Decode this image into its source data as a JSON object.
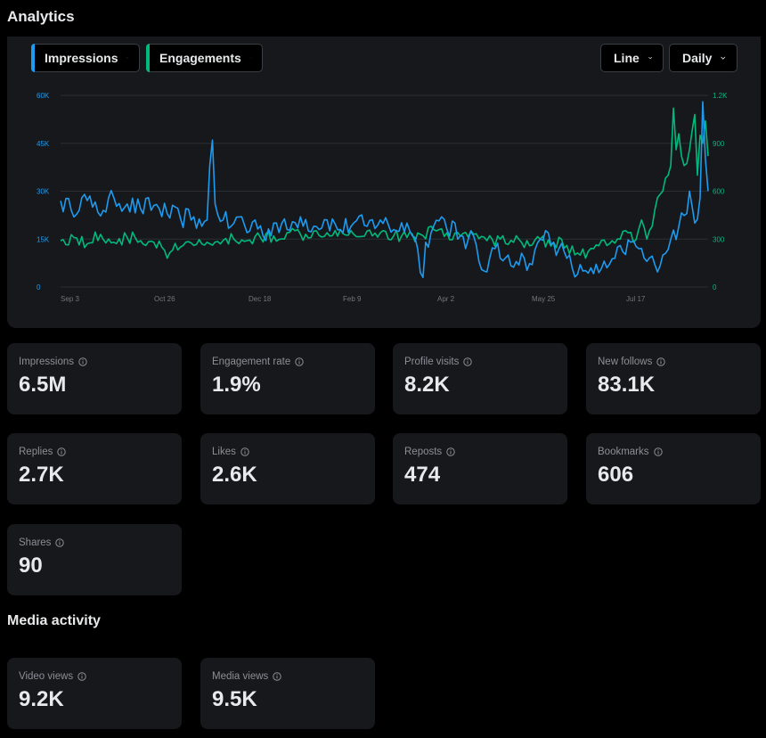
{
  "header": {
    "title": "Analytics"
  },
  "chart_controls": {
    "metric_1": {
      "label": "Impressions",
      "color": "#1d9bf0"
    },
    "metric_2": {
      "label": "Engagements",
      "color": "#00ba7c"
    },
    "chart_type": "Line",
    "interval": "Daily"
  },
  "chart_data": {
    "type": "line",
    "x_tick_labels": [
      "Sep 3",
      "Oct 26",
      "Dec 18",
      "Feb 9",
      "Apr 2",
      "May 25",
      "Jul 17"
    ],
    "y_left_ticks": [
      "60K",
      "45K",
      "30K",
      "15K",
      "0"
    ],
    "y_right_ticks": [
      "1.2K",
      "900",
      "600",
      "300",
      "0"
    ],
    "y_left_range": [
      0,
      60000
    ],
    "y_right_range": [
      0,
      1200
    ],
    "grid": true,
    "series": [
      {
        "name": "Impressions",
        "axis": "left",
        "color": "#1d9bf0",
        "anchors": [
          [
            0,
            27000
          ],
          [
            4,
            24000
          ],
          [
            8,
            28000
          ],
          [
            12,
            25000
          ],
          [
            16,
            24000
          ],
          [
            20,
            28000
          ],
          [
            25,
            26000
          ],
          [
            30,
            24500
          ],
          [
            35,
            25500
          ],
          [
            40,
            23000
          ],
          [
            45,
            21500
          ],
          [
            50,
            22000
          ],
          [
            53,
            19000
          ],
          [
            55,
            21000
          ],
          [
            56,
            38000
          ],
          [
            57,
            46000
          ],
          [
            58,
            26000
          ],
          [
            61,
            21000
          ],
          [
            64,
            19000
          ],
          [
            68,
            22000
          ],
          [
            70,
            17000
          ],
          [
            73,
            21000
          ],
          [
            76,
            16000
          ],
          [
            80,
            20000
          ],
          [
            85,
            18000
          ],
          [
            90,
            22000
          ],
          [
            95,
            19000
          ],
          [
            100,
            21000
          ],
          [
            105,
            18000
          ],
          [
            110,
            20000
          ],
          [
            115,
            19000
          ],
          [
            120,
            21000
          ],
          [
            125,
            18000
          ],
          [
            130,
            20000
          ],
          [
            132,
            16000
          ],
          [
            134,
            12000
          ],
          [
            136,
            3000
          ],
          [
            137,
            14000
          ],
          [
            140,
            19000
          ],
          [
            143,
            22000
          ],
          [
            145,
            18000
          ],
          [
            148,
            20000
          ],
          [
            150,
            16000
          ],
          [
            152,
            12000
          ],
          [
            155,
            16000
          ],
          [
            157,
            8000
          ],
          [
            159,
            5000
          ],
          [
            161,
            9000
          ],
          [
            163,
            12000
          ],
          [
            165,
            9000
          ],
          [
            168,
            10000
          ],
          [
            171,
            8000
          ],
          [
            174,
            9000
          ],
          [
            177,
            7000
          ],
          [
            180,
            15000
          ],
          [
            183,
            17000
          ],
          [
            185,
            14000
          ],
          [
            187,
            12000
          ],
          [
            190,
            9000
          ],
          [
            192,
            6000
          ],
          [
            194,
            4000
          ],
          [
            196,
            5000
          ],
          [
            199,
            6000
          ],
          [
            202,
            4500
          ],
          [
            205,
            6000
          ],
          [
            208,
            9000
          ],
          [
            211,
            11000
          ],
          [
            214,
            14000
          ],
          [
            217,
            12000
          ],
          [
            220,
            8000
          ],
          [
            223,
            7000
          ],
          [
            226,
            10000
          ],
          [
            229,
            15000
          ],
          [
            232,
            19000
          ],
          [
            235,
            23000
          ],
          [
            236,
            30000
          ],
          [
            238,
            20000
          ],
          [
            240,
            28000
          ],
          [
            241,
            58000
          ],
          [
            242,
            40000
          ],
          [
            243,
            30000
          ]
        ]
      },
      {
        "name": "Engagements",
        "axis": "right",
        "color": "#00ba7c",
        "anchors": [
          [
            0,
            290
          ],
          [
            5,
            310
          ],
          [
            10,
            270
          ],
          [
            15,
            330
          ],
          [
            20,
            280
          ],
          [
            25,
            310
          ],
          [
            30,
            290
          ],
          [
            35,
            280
          ],
          [
            38,
            250
          ],
          [
            40,
            180
          ],
          [
            42,
            230
          ],
          [
            45,
            250
          ],
          [
            50,
            260
          ],
          [
            55,
            280
          ],
          [
            60,
            270
          ],
          [
            65,
            300
          ],
          [
            70,
            290
          ],
          [
            75,
            310
          ],
          [
            80,
            320
          ],
          [
            85,
            340
          ],
          [
            90,
            330
          ],
          [
            95,
            350
          ],
          [
            100,
            340
          ],
          [
            105,
            360
          ],
          [
            110,
            330
          ],
          [
            115,
            350
          ],
          [
            120,
            340
          ],
          [
            125,
            320
          ],
          [
            130,
            310
          ],
          [
            135,
            330
          ],
          [
            140,
            360
          ],
          [
            145,
            340
          ],
          [
            150,
            320
          ],
          [
            155,
            330
          ],
          [
            160,
            290
          ],
          [
            165,
            300
          ],
          [
            170,
            280
          ],
          [
            175,
            290
          ],
          [
            180,
            300
          ],
          [
            185,
            280
          ],
          [
            190,
            260
          ],
          [
            195,
            200
          ],
          [
            200,
            240
          ],
          [
            205,
            260
          ],
          [
            210,
            300
          ],
          [
            213,
            340
          ],
          [
            215,
            280
          ],
          [
            218,
            420
          ],
          [
            220,
            300
          ],
          [
            222,
            380
          ],
          [
            224,
            560
          ],
          [
            226,
            600
          ],
          [
            228,
            700
          ],
          [
            229,
            760
          ],
          [
            230,
            1120
          ],
          [
            231,
            860
          ],
          [
            232,
            960
          ],
          [
            233,
            820
          ],
          [
            234,
            760
          ],
          [
            236,
            860
          ],
          [
            238,
            1080
          ],
          [
            239,
            700
          ],
          [
            240,
            950
          ],
          [
            241,
            900
          ],
          [
            242,
            1040
          ],
          [
            243,
            820
          ]
        ]
      }
    ]
  },
  "metrics": [
    {
      "label": "Impressions",
      "value": "6.5M"
    },
    {
      "label": "Engagement rate",
      "value": "1.9%"
    },
    {
      "label": "Profile visits",
      "value": "8.2K"
    },
    {
      "label": "New follows",
      "value": "83.1K"
    },
    {
      "label": "Replies",
      "value": "2.7K"
    },
    {
      "label": "Likes",
      "value": "2.6K"
    },
    {
      "label": "Reposts",
      "value": "474"
    },
    {
      "label": "Bookmarks",
      "value": "606"
    },
    {
      "label": "Shares",
      "value": "90"
    }
  ],
  "media_section": {
    "title": "Media activity"
  },
  "media_metrics": [
    {
      "label": "Video views",
      "value": "9.2K"
    },
    {
      "label": "Media views",
      "value": "9.5K"
    }
  ],
  "icons": {
    "info": "info-circle-icon",
    "dropdown": "chevron-down-icon"
  }
}
